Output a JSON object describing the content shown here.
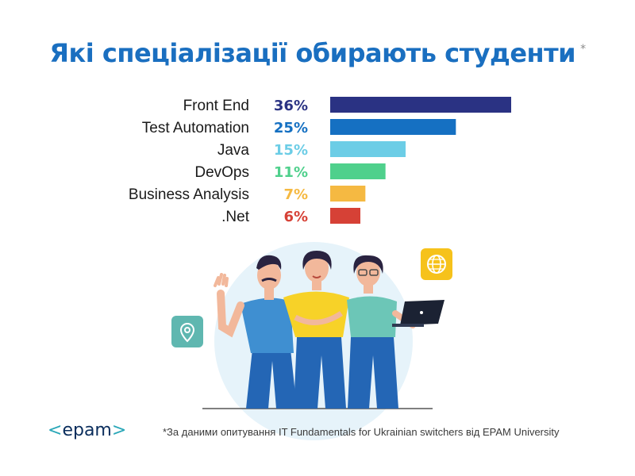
{
  "title": "Які спеціалізації обирають студенти",
  "title_mark": "*",
  "footnote": "*За даними опитування IT Fundamentals for Ukrainian switchers від EPAM University",
  "logo": {
    "left": "<",
    "text": "epam",
    "right": ">"
  },
  "icons": [
    "location-pin-icon",
    "globe-icon",
    "laptop-icon"
  ],
  "chart_data": {
    "type": "bar",
    "orientation": "horizontal",
    "categories": [
      "Front End",
      "Test Automation",
      "Java",
      "DevOps",
      "Business Analysis",
      ".Net"
    ],
    "values": [
      36,
      25,
      15,
      11,
      7,
      6
    ],
    "value_labels": [
      "36%",
      "25%",
      "15%",
      "11%",
      "7%",
      "6%"
    ],
    "colors": [
      "#2a3283",
      "#1570c2",
      "#6ccde6",
      "#4fd08c",
      "#f5b942",
      "#d64136"
    ],
    "title": "Які спеціалізації обирають студенти",
    "xlabel": "",
    "ylabel": "",
    "grid": false,
    "legend": false
  }
}
